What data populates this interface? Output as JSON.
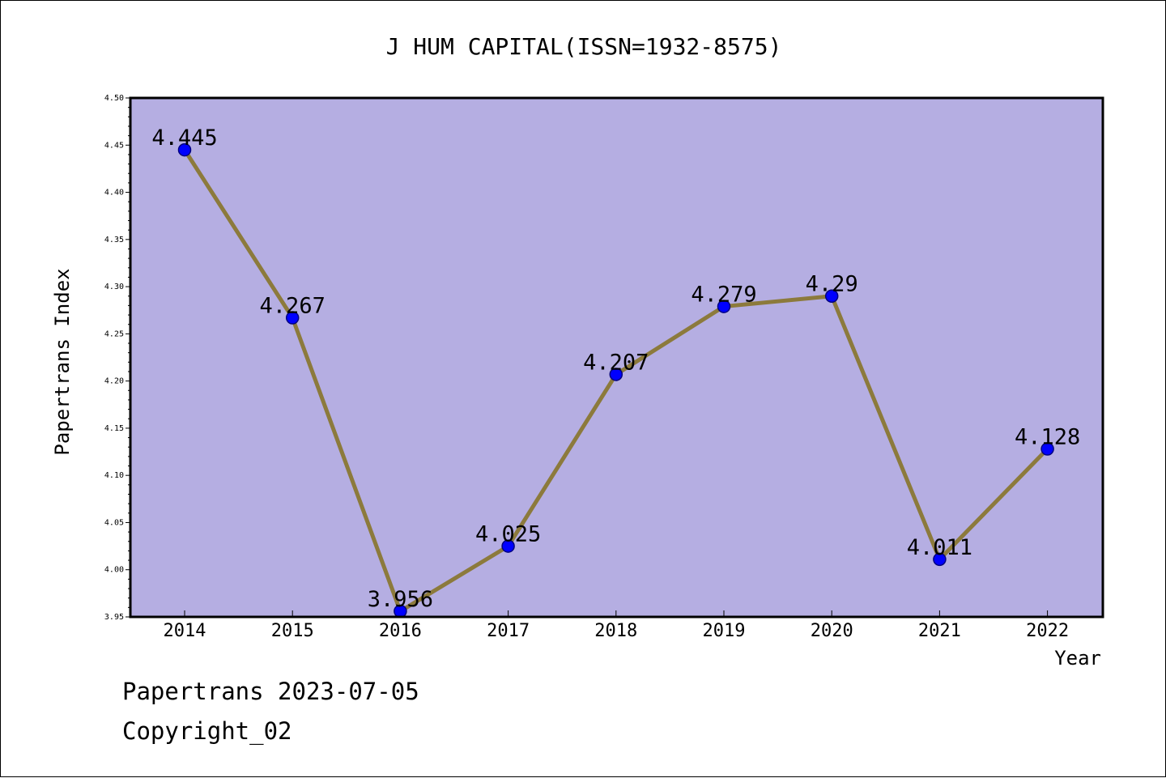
{
  "colors": {
    "plot_background": "#b5aee2",
    "line": "#8c7a3c",
    "marker_fill": "#0000ff",
    "marker_stroke": "#000080",
    "axis": "#000000",
    "text": "#000000"
  },
  "chart_data": {
    "type": "line",
    "title": "J HUM CAPITAL(ISSN=1932-8575)",
    "xlabel": "Year",
    "ylabel": "Papertrans Index",
    "categories": [
      "2014",
      "2015",
      "2016",
      "2017",
      "2018",
      "2019",
      "2020",
      "2021",
      "2022"
    ],
    "values": [
      4.445,
      4.267,
      3.956,
      4.025,
      4.207,
      4.279,
      4.29,
      4.011,
      4.128
    ],
    "value_labels": [
      "4.445",
      "4.267",
      "3.956",
      "4.025",
      "4.207",
      "4.279",
      "4.29",
      "4.011",
      "4.128"
    ],
    "ylim": [
      3.95,
      4.5
    ],
    "y_ticks": [
      "3.95",
      "4.00",
      "4.05",
      "4.10",
      "4.15",
      "4.20",
      "4.25",
      "4.30",
      "4.35",
      "4.40",
      "4.45",
      "4.50"
    ],
    "grid": false,
    "legend": "none"
  },
  "footer": {
    "date_line": "Papertrans 2023-07-05",
    "copyright_line": "Copyright_02"
  }
}
